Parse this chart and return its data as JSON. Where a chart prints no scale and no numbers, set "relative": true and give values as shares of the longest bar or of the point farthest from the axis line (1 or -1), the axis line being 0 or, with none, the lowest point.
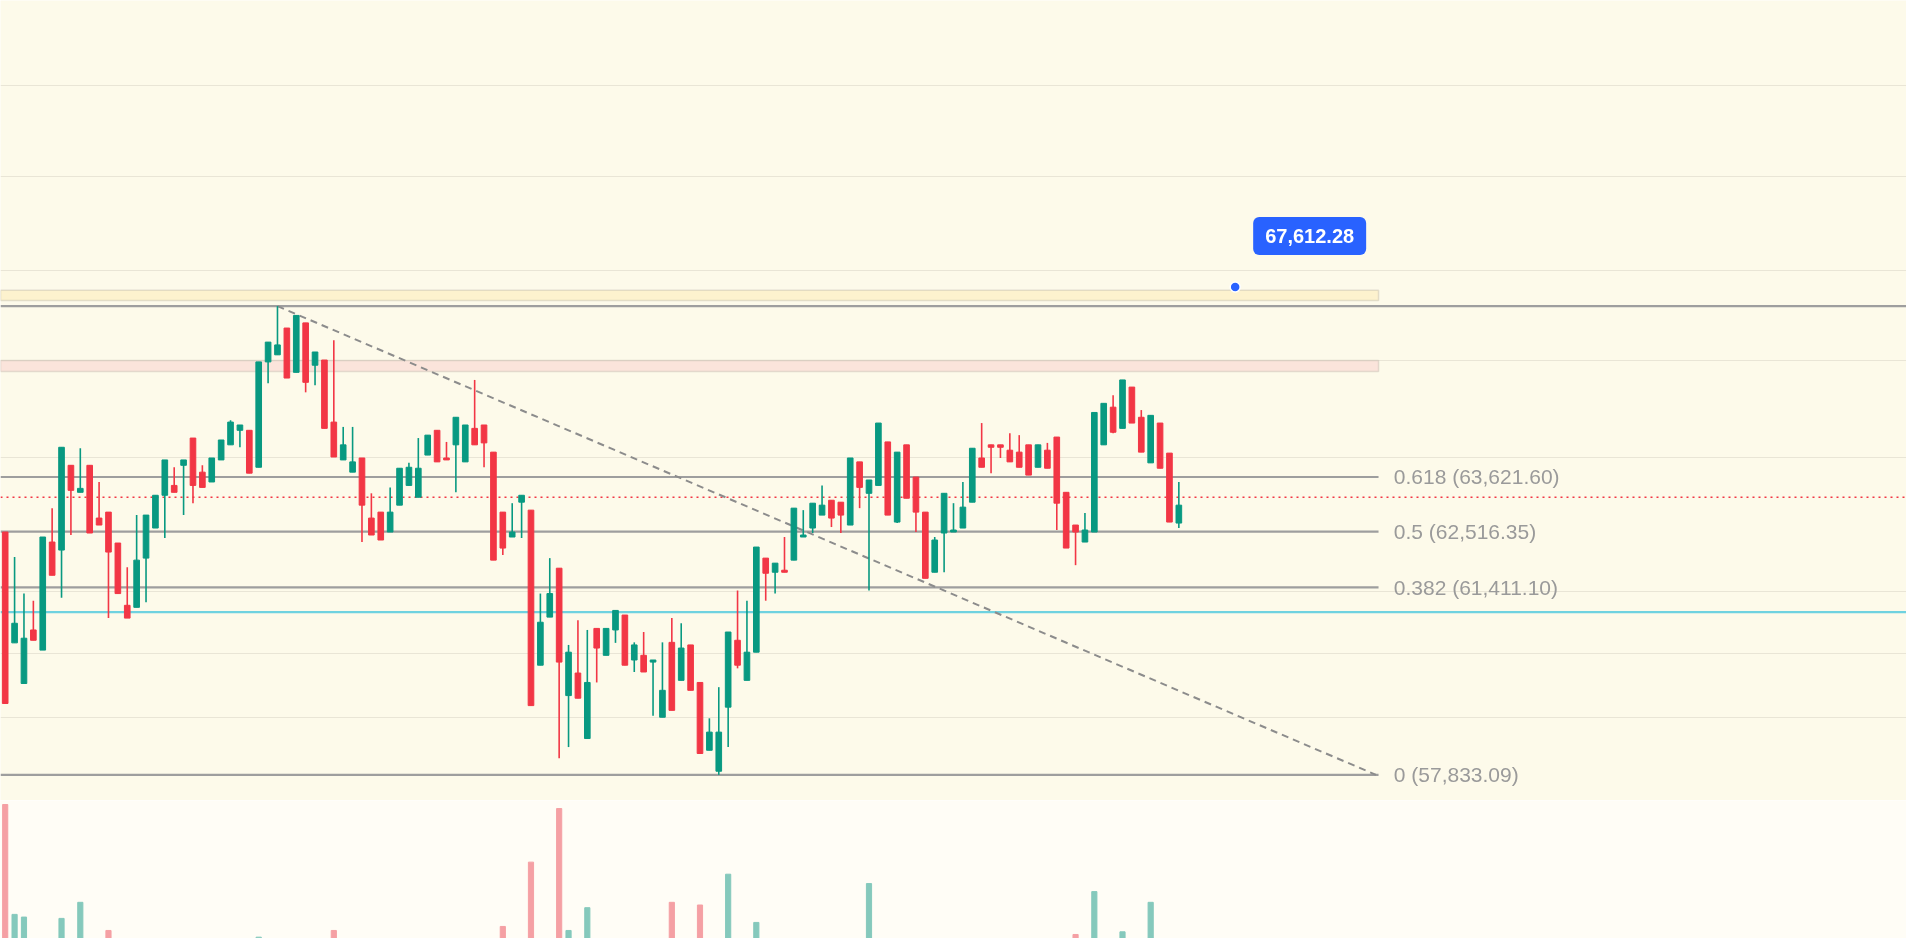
{
  "chart_data": [
    {
      "type": "candlestick",
      "log": true,
      "tick_labels": false,
      "grid": "y",
      "ylim": [
        57360,
        74110
      ],
      "yticks": [
        {
          "value": 58910,
          "label": null
        },
        {
          "value": 60130,
          "label": null
        },
        {
          "value": 61330,
          "label": null
        },
        {
          "value": 64030,
          "label": null
        },
        {
          "value": 66030,
          "label": null
        },
        {
          "value": 67970,
          "label": null
        },
        {
          "value": 70050,
          "label": null
        },
        {
          "value": 72120,
          "label": null
        }
      ],
      "categories": [
        null,
        null,
        null,
        null,
        null,
        null,
        null,
        null,
        null,
        null,
        null,
        null,
        null,
        null,
        null,
        null,
        null,
        null,
        null,
        null,
        null,
        null,
        null,
        null,
        null,
        null,
        null,
        null,
        null,
        null,
        null,
        null,
        null,
        null,
        null,
        null,
        null,
        null,
        null,
        null,
        null,
        null,
        null,
        null,
        null,
        null,
        null,
        null,
        null,
        null,
        null,
        null,
        null,
        null,
        null,
        null,
        null,
        null,
        null,
        null,
        null,
        null,
        null,
        null,
        null,
        null,
        null,
        null,
        null,
        null,
        null,
        null,
        null,
        null,
        null,
        null,
        null,
        null,
        null,
        null,
        null,
        null,
        null,
        null,
        null,
        null,
        null,
        null,
        null,
        null,
        null,
        null,
        null,
        null,
        null,
        null,
        null,
        null,
        null,
        null,
        null,
        null,
        null,
        null,
        null,
        null,
        null,
        null,
        null,
        null,
        null,
        null,
        null,
        null,
        null,
        null,
        null,
        null,
        null,
        null,
        null,
        null,
        null,
        null,
        null,
        null,
        null,
        null,
        null,
        null,
        null,
        null,
        null,
        null,
        null,
        null,
        null,
        null,
        null,
        null,
        null,
        null,
        null,
        null,
        null,
        null,
        null,
        null,
        null,
        null,
        null,
        null,
        null,
        null,
        null,
        null,
        null,
        null,
        null,
        null,
        null,
        null,
        null,
        null,
        null,
        null,
        null,
        null,
        null,
        null,
        null,
        null,
        null,
        null,
        null,
        null,
        null,
        null,
        null,
        null,
        null,
        null,
        null,
        null,
        null,
        null,
        null,
        null,
        null,
        null,
        null,
        null,
        null,
        null,
        null,
        null,
        null,
        null,
        null,
        null,
        null,
        null,
        null
      ],
      "ohlc": [
        [
          62510,
          62510,
          59170,
          59170
        ],
        [
          60330,
          62010,
          60330,
          60710
        ],
        [
          59550,
          61290,
          59550,
          60420
        ],
        [
          60580,
          61150,
          60380,
          60380
        ],
        [
          60190,
          62410,
          60190,
          62410
        ],
        [
          62310,
          62990,
          61650,
          61650
        ],
        [
          62150,
          64230,
          61210,
          64230
        ],
        [
          63860,
          63860,
          62450,
          63350
        ],
        [
          63310,
          64210,
          63310,
          63390
        ],
        [
          63860,
          63860,
          62490,
          62490
        ],
        [
          62790,
          63520,
          62650,
          62650
        ],
        [
          62910,
          62910,
          60810,
          62110
        ],
        [
          62290,
          62290,
          61290,
          61290
        ],
        [
          61060,
          61810,
          60810,
          60810
        ],
        [
          61020,
          62850,
          61020,
          61950
        ],
        [
          61990,
          62850,
          61120,
          62850
        ],
        [
          62590,
          63250,
          62590,
          63250
        ],
        [
          63250,
          63970,
          62390,
          63970
        ],
        [
          63450,
          63820,
          63310,
          63310
        ],
        [
          63860,
          63970,
          62850,
          63970
        ],
        [
          64420,
          64420,
          63090,
          63450
        ],
        [
          63720,
          63860,
          63410,
          63410
        ],
        [
          63520,
          64010,
          63520,
          64010
        ],
        [
          63970,
          64380,
          63970,
          64380
        ],
        [
          64280,
          64790,
          64280,
          64750
        ],
        [
          64580,
          64690,
          64230,
          64690
        ],
        [
          64580,
          64580,
          63700,
          63700
        ],
        [
          63820,
          66010,
          63820,
          66010
        ],
        [
          66010,
          66430,
          65560,
          66430
        ],
        [
          66160,
          67200,
          66160,
          66370
        ],
        [
          66730,
          66730,
          65670,
          65670
        ],
        [
          65790,
          67000,
          65790,
          67000
        ],
        [
          66840,
          66840,
          65370,
          65580
        ],
        [
          65940,
          66220,
          65520,
          66220
        ],
        [
          66050,
          66050,
          64620,
          64620
        ],
        [
          64750,
          66470,
          64030,
          64030
        ],
        [
          63970,
          64650,
          63970,
          64280
        ],
        [
          63720,
          64650,
          63720,
          63930
        ],
        [
          64010,
          64010,
          62310,
          63050
        ],
        [
          62790,
          63290,
          62450,
          62450
        ],
        [
          62910,
          62910,
          62350,
          62350
        ],
        [
          62510,
          63410,
          62510,
          62910
        ],
        [
          63050,
          63800,
          63050,
          63800
        ],
        [
          63450,
          63910,
          63450,
          63820
        ],
        [
          63210,
          64420,
          63210,
          63800
        ],
        [
          64070,
          64480,
          64070,
          64480
        ],
        [
          64580,
          64580,
          63930,
          63930
        ],
        [
          64010,
          64340,
          63970,
          63970
        ],
        [
          64280,
          64850,
          63310,
          64850
        ],
        [
          63930,
          64690,
          63930,
          64690
        ],
        [
          64620,
          65630,
          64280,
          64280
        ],
        [
          64690,
          64690,
          63820,
          64320
        ],
        [
          64130,
          64130,
          61950,
          61950
        ],
        [
          62910,
          62910,
          62050,
          62190
        ],
        [
          62410,
          63090,
          62410,
          62510
        ],
        [
          63110,
          63250,
          62390,
          63250
        ],
        [
          62950,
          62950,
          59130,
          59130
        ],
        [
          59900,
          61290,
          59900,
          60730
        ],
        [
          60830,
          61990,
          60830,
          61290
        ],
        [
          61790,
          61790,
          58140,
          59960
        ],
        [
          59320,
          60290,
          58350,
          60150
        ],
        [
          59750,
          60770,
          59270,
          59270
        ],
        [
          58510,
          60580,
          58510,
          59570
        ],
        [
          60610,
          60610,
          59570,
          60230
        ],
        [
          60090,
          60610,
          60090,
          60610
        ],
        [
          60580,
          60960,
          60330,
          60960
        ],
        [
          60870,
          60870,
          59900,
          59900
        ],
        [
          60000,
          60340,
          59770,
          60290
        ],
        [
          60090,
          60540,
          59770,
          59770
        ],
        [
          59960,
          60000,
          58940,
          60000
        ],
        [
          58910,
          60340,
          58910,
          59420
        ],
        [
          60340,
          60810,
          59040,
          59040
        ],
        [
          59610,
          60710,
          59610,
          60230
        ],
        [
          60290,
          60290,
          59420,
          59420
        ],
        [
          59570,
          59570,
          58230,
          58230
        ],
        [
          58290,
          58890,
          58290,
          58630
        ],
        [
          57900,
          59480,
          57833.09,
          58630
        ],
        [
          59100,
          60540,
          58350,
          60540
        ],
        [
          60380,
          61350,
          59840,
          59900
        ],
        [
          59610,
          61150,
          59610,
          60150
        ],
        [
          60150,
          62210,
          60150,
          62210
        ],
        [
          61990,
          61990,
          61150,
          61690
        ],
        [
          61710,
          61890,
          61290,
          61890
        ],
        [
          61750,
          62410,
          61710,
          61710
        ],
        [
          61950,
          62990,
          61950,
          62990
        ],
        [
          62410,
          62950,
          62410,
          62450
        ],
        [
          62590,
          63090,
          62490,
          63090
        ],
        [
          62850,
          63450,
          62850,
          63050
        ],
        [
          63150,
          63150,
          62610,
          62790
        ],
        [
          63110,
          63110,
          62490,
          62850
        ],
        [
          62650,
          64010,
          62650,
          64010
        ],
        [
          63930,
          63930,
          62990,
          63410
        ],
        [
          63290,
          63560,
          61350,
          63560
        ],
        [
          63450,
          64730,
          63450,
          64730
        ],
        [
          64340,
          64340,
          62850,
          62850
        ],
        [
          62710,
          64130,
          62690,
          64130
        ],
        [
          64280,
          64280,
          63190,
          63190
        ],
        [
          63620,
          63620,
          62510,
          62910
        ],
        [
          62910,
          62910,
          61590,
          61590
        ],
        [
          61710,
          62410,
          61710,
          62350
        ],
        [
          62490,
          63290,
          61710,
          63290
        ],
        [
          62510,
          63090,
          62510,
          62550
        ],
        [
          62590,
          63520,
          62590,
          63010
        ],
        [
          63110,
          64210,
          63110,
          64210
        ],
        [
          64010,
          64730,
          63820,
          63820
        ],
        [
          64280,
          64280,
          63700,
          64230
        ],
        [
          64280,
          64280,
          64010,
          64230
        ],
        [
          64170,
          64520,
          63930,
          63930
        ],
        [
          64130,
          64480,
          63820,
          63820
        ],
        [
          64280,
          64280,
          63660,
          63660
        ],
        [
          63820,
          64280,
          63820,
          64280
        ],
        [
          64170,
          64320,
          63800,
          63800
        ],
        [
          64440,
          64440,
          62550,
          63090
        ],
        [
          63310,
          63310,
          62190,
          62190
        ],
        [
          62650,
          62650,
          61850,
          62510
        ],
        [
          62310,
          62890,
          62310,
          62550
        ],
        [
          62510,
          64950,
          62510,
          64950
        ],
        [
          64280,
          65140,
          64280,
          65140
        ],
        [
          65060,
          65310,
          64520,
          64540
        ],
        [
          64620,
          65630,
          64620,
          65630
        ],
        [
          65480,
          65480,
          64730,
          64730
        ],
        [
          64850,
          65000,
          64130,
          64130
        ],
        [
          63910,
          64890,
          63910,
          64890
        ],
        [
          64730,
          64730,
          63800,
          63800
        ],
        [
          64110,
          64110,
          62710,
          62710
        ],
        [
          62690,
          63520,
          62590,
          63050
        ],
        null,
        null,
        null,
        null,
        null,
        null,
        null,
        null,
        null,
        null,
        null,
        null,
        null,
        null,
        null,
        null,
        null,
        null,
        null,
        null,
        null,
        null,
        null,
        null,
        null,
        null,
        null,
        null,
        null,
        null,
        null,
        null,
        null,
        null,
        null,
        null,
        null,
        null,
        null,
        null,
        null,
        null,
        null,
        null,
        null,
        null,
        null,
        null,
        null,
        null,
        null,
        null,
        null,
        null,
        null,
        null,
        null,
        null,
        null,
        null,
        null,
        null,
        null,
        null,
        null,
        null,
        null,
        null,
        null,
        null,
        null,
        null,
        null,
        null,
        null,
        null,
        null
      ],
      "colors": [
        "#f23645",
        "#089981",
        "#089981",
        "#f23645",
        "#089981",
        "#f23645",
        "#089981",
        "#f23645",
        "#089981",
        "#f23645",
        "#f23645",
        "#f23645",
        "#f23645",
        "#f23645",
        "#089981",
        "#089981",
        "#089981",
        "#089981",
        "#f23645",
        "#089981",
        "#f23645",
        "#f23645",
        "#089981",
        "#089981",
        "#089981",
        "#089981",
        "#f23645",
        "#089981",
        "#089981",
        "#089981",
        "#f23645",
        "#089981",
        "#f23645",
        "#089981",
        "#f23645",
        "#f23645",
        "#089981",
        "#089981",
        "#f23645",
        "#f23645",
        "#f23645",
        "#089981",
        "#089981",
        "#089981",
        "#089981",
        "#089981",
        "#f23645",
        "#f23645",
        "#089981",
        "#089981",
        "#f23645",
        "#f23645",
        "#f23645",
        "#f23645",
        "#089981",
        "#089981",
        "#f23645",
        "#089981",
        "#089981",
        "#f23645",
        "#089981",
        "#f23645",
        "#089981",
        "#f23645",
        "#089981",
        "#089981",
        "#f23645",
        "#089981",
        "#f23645",
        "#089981",
        "#089981",
        "#f23645",
        "#089981",
        "#f23645",
        "#f23645",
        "#089981",
        "#089981",
        "#089981",
        "#f23645",
        "#089981",
        "#089981",
        "#f23645",
        "#089981",
        "#f23645",
        "#089981",
        "#089981",
        "#089981",
        "#089981",
        "#f23645",
        "#f23645",
        "#089981",
        "#f23645",
        "#089981",
        "#089981",
        "#f23645",
        "#089981",
        "#f23645",
        "#f23645",
        "#f23645",
        "#089981",
        "#089981",
        "#089981",
        "#089981",
        "#089981",
        "#f23645",
        "#f23645",
        "#f23645",
        "#f23645",
        "#f23645",
        "#f23645",
        "#089981",
        "#f23645",
        "#f23645",
        "#f23645",
        "#f23645",
        "#089981",
        "#089981",
        "#089981",
        "#f23645",
        "#089981",
        "#f23645",
        "#f23645",
        "#089981",
        "#f23645",
        "#f23645",
        "#089981",
        null,
        null,
        null,
        null,
        null,
        null,
        null,
        null,
        null,
        null,
        null,
        null,
        null,
        null,
        null,
        null,
        null,
        null,
        null,
        null,
        null,
        null,
        null,
        null,
        null,
        null,
        null,
        null,
        null,
        null,
        null,
        null,
        null,
        null,
        null,
        null,
        null,
        null,
        null,
        null,
        null,
        null,
        null,
        null,
        null,
        null,
        null,
        null,
        null,
        null,
        null,
        null,
        null,
        null,
        null,
        null,
        null,
        null,
        null,
        null,
        null,
        null,
        null,
        null,
        null,
        null,
        null,
        null,
        null,
        null,
        null,
        null,
        null,
        null,
        null,
        null,
        null
      ],
      "series": [
        {
          "type": "line",
          "color": "#8c8c8c",
          "line_style": "dashed",
          "values": [
            null,
            null,
            null,
            null,
            null,
            null,
            null,
            null,
            null,
            null,
            null,
            null,
            null,
            null,
            null,
            null,
            null,
            null,
            null,
            null,
            null,
            null,
            null,
            null,
            null,
            null,
            null,
            null,
            null,
            67199.61,
            null,
            null,
            null,
            null,
            null,
            null,
            null,
            null,
            null,
            null,
            null,
            null,
            null,
            null,
            null,
            null,
            null,
            null,
            null,
            null,
            null,
            null,
            null,
            null,
            null,
            null,
            null,
            null,
            null,
            null,
            null,
            null,
            null,
            null,
            null,
            null,
            null,
            null,
            null,
            null,
            null,
            null,
            null,
            null,
            null,
            null,
            null,
            null,
            null,
            null,
            null,
            null,
            null,
            null,
            null,
            null,
            null,
            null,
            null,
            null,
            null,
            null,
            null,
            null,
            null,
            null,
            null,
            null,
            null,
            null,
            null,
            null,
            null,
            null,
            null,
            null,
            null,
            null,
            null,
            null,
            null,
            null,
            null,
            null,
            null,
            null,
            null,
            null,
            null,
            null,
            null,
            null,
            null,
            null,
            null,
            null,
            null,
            null,
            null,
            null,
            null,
            null,
            null,
            null,
            null,
            null,
            null,
            null,
            null,
            null,
            null,
            null,
            null,
            null,
            null,
            null,
            57833.09,
            null,
            null,
            null,
            null,
            null,
            null,
            null,
            null,
            null,
            null,
            null,
            null,
            null,
            null,
            null,
            null,
            null,
            null,
            null,
            null,
            null,
            null,
            null,
            null,
            null,
            null,
            null,
            null,
            null,
            null,
            null,
            null,
            null,
            null,
            null,
            null,
            null,
            null,
            null,
            null,
            null,
            null,
            null,
            null,
            null,
            null,
            null,
            null,
            null,
            null,
            null,
            null,
            null,
            null,
            null,
            null
          ]
        },
        {
          "type": "scatter",
          "color": "#2962ff",
          "marker": "circle",
          "values": [
            null,
            null,
            null,
            null,
            null,
            null,
            null,
            null,
            null,
            null,
            null,
            null,
            null,
            null,
            null,
            null,
            null,
            null,
            null,
            null,
            null,
            null,
            null,
            null,
            null,
            null,
            null,
            null,
            null,
            null,
            null,
            null,
            null,
            null,
            null,
            null,
            null,
            null,
            null,
            null,
            null,
            null,
            null,
            null,
            null,
            null,
            null,
            null,
            null,
            null,
            null,
            null,
            null,
            null,
            null,
            null,
            null,
            null,
            null,
            null,
            null,
            null,
            null,
            null,
            null,
            null,
            null,
            null,
            null,
            null,
            null,
            null,
            null,
            null,
            null,
            null,
            null,
            null,
            null,
            null,
            null,
            null,
            null,
            null,
            null,
            null,
            null,
            null,
            null,
            null,
            null,
            null,
            null,
            null,
            null,
            null,
            null,
            null,
            null,
            null,
            null,
            null,
            null,
            null,
            null,
            null,
            null,
            null,
            null,
            null,
            null,
            null,
            null,
            null,
            null,
            null,
            null,
            null,
            null,
            null,
            null,
            null,
            null,
            null,
            null,
            null,
            null,
            null,
            null,
            null,
            null,
            67612.28,
            null,
            null,
            null,
            null,
            null,
            null,
            null,
            null,
            null,
            null,
            null,
            null,
            null,
            null,
            null,
            null,
            null,
            null,
            null,
            null,
            null,
            null,
            null,
            null,
            null,
            null,
            null,
            null,
            null,
            null,
            null,
            null,
            null,
            null,
            null,
            null,
            null,
            null,
            null,
            null,
            null,
            null,
            null,
            null,
            null,
            null,
            null,
            null,
            null,
            null,
            null,
            null,
            null,
            null,
            null,
            null,
            null,
            null,
            null,
            null,
            null,
            null,
            null,
            null,
            null,
            null,
            null,
            null,
            null,
            null,
            null
          ]
        }
      ],
      "ref_lines": [
        {
          "axis": "y",
          "value": 67199.61,
          "label": null,
          "color": "#9e9e9e"
        },
        {
          "axis": "y",
          "value": 63621.6,
          "label": "0.618 (63,621.60)",
          "color": "#9e9e9e"
        },
        {
          "axis": "y",
          "value": 62516.35,
          "label": "0.5 (62,516.35)",
          "color": "#9e9e9e"
        },
        {
          "axis": "y",
          "value": 61411.1,
          "label": "0.382 (61,411.10)",
          "color": "#9e9e9e"
        },
        {
          "axis": "y",
          "value": 57833.09,
          "label": "0 (57,833.09)",
          "color": "#9e9e9e"
        },
        {
          "axis": "y",
          "value": 60925,
          "label": null,
          "color": "#6fd2e0"
        },
        {
          "axis": "y",
          "value": 63210,
          "label": null,
          "color": "#f23645",
          "line_style": "dotted"
        }
      ],
      "bands": [
        {
          "axis": "y",
          "from": 67320,
          "to": 67540,
          "color": "#fcefc4"
        },
        {
          "axis": "y",
          "from": 65810,
          "to": 66040,
          "color": "#fadcd6"
        }
      ],
      "annotations": [
        {
          "text": "67,612.28",
          "y": 67612.28
        }
      ]
    },
    {
      "type": "bar",
      "relative": true,
      "tick_labels": false,
      "categories": [
        null,
        null,
        null,
        null,
        null,
        null,
        null,
        null,
        null,
        null,
        null,
        null,
        null,
        null,
        null,
        null,
        null,
        null,
        null,
        null,
        null,
        null,
        null,
        null,
        null,
        null,
        null,
        null,
        null,
        null,
        null,
        null,
        null,
        null,
        null,
        null,
        null,
        null,
        null,
        null,
        null,
        null,
        null,
        null,
        null,
        null,
        null,
        null,
        null,
        null,
        null,
        null,
        null,
        null,
        null,
        null,
        null,
        null,
        null,
        null,
        null,
        null,
        null,
        null,
        null,
        null,
        null,
        null,
        null,
        null,
        null,
        null,
        null,
        null,
        null,
        null,
        null,
        null,
        null,
        null,
        null,
        null,
        null,
        null,
        null,
        null,
        null,
        null,
        null,
        null,
        null,
        null,
        null,
        null,
        null,
        null,
        null,
        null,
        null,
        null,
        null,
        null,
        null,
        null,
        null,
        null,
        null,
        null,
        null,
        null,
        null,
        null,
        null,
        null,
        null,
        null,
        null,
        null,
        null,
        null,
        null,
        null,
        null,
        null,
        null,
        null,
        null,
        null,
        null,
        null,
        null,
        null,
        null,
        null,
        null,
        null,
        null,
        null,
        null,
        null,
        null,
        null,
        null,
        null,
        null,
        null,
        null,
        null,
        null,
        null,
        null,
        null,
        null,
        null,
        null,
        null,
        null,
        null,
        null,
        null,
        null,
        null,
        null,
        null,
        null,
        null,
        null,
        null,
        null,
        null,
        null,
        null,
        null,
        null,
        null,
        null,
        null,
        null,
        null,
        null,
        null,
        null,
        null,
        null,
        null,
        null,
        null,
        null,
        null,
        null,
        null,
        null,
        null,
        null,
        null,
        null,
        null,
        null,
        null,
        null,
        null,
        null,
        null
      ],
      "values": [
        1,
        0.18,
        0.16,
        null,
        null,
        null,
        0.15,
        null,
        0.27,
        null,
        null,
        0.06,
        null,
        null,
        null,
        null,
        null,
        null,
        null,
        null,
        null,
        null,
        null,
        null,
        null,
        null,
        null,
        0.01,
        null,
        null,
        null,
        null,
        null,
        null,
        null,
        0.06,
        null,
        null,
        null,
        null,
        null,
        null,
        null,
        null,
        null,
        null,
        null,
        null,
        null,
        null,
        null,
        null,
        null,
        0.09,
        null,
        null,
        0.57,
        null,
        null,
        0.97,
        0.06,
        null,
        0.23,
        null,
        null,
        null,
        null,
        null,
        null,
        null,
        null,
        0.27,
        null,
        null,
        0.25,
        null,
        null,
        0.48,
        null,
        null,
        0.12,
        null,
        null,
        null,
        null,
        null,
        null,
        null,
        null,
        null,
        null,
        null,
        0.41,
        null,
        null,
        null,
        null,
        null,
        null,
        null,
        null,
        null,
        null,
        null,
        null,
        null,
        null,
        null,
        null,
        null,
        null,
        null,
        null,
        null,
        0.03,
        null,
        0.35,
        null,
        null,
        0.05,
        null,
        null,
        0.27,
        null,
        null,
        null,
        null,
        null,
        null,
        null,
        null,
        null,
        null,
        null,
        null,
        null,
        null,
        null,
        null,
        null,
        null,
        null,
        null,
        null,
        null,
        null,
        null,
        null,
        null,
        null,
        null,
        null,
        null,
        null,
        null,
        null,
        null,
        null,
        null,
        null,
        null,
        null,
        null,
        null,
        null,
        null,
        null,
        null,
        null,
        null,
        null,
        null,
        null,
        null,
        null,
        null,
        null,
        null,
        null,
        null,
        null,
        null,
        null,
        null,
        null,
        null,
        null,
        null,
        null,
        null,
        null,
        null,
        null,
        null,
        null,
        null,
        null,
        null,
        null,
        null,
        null,
        null,
        null
      ],
      "colors": [
        "#f5a0a4",
        "#85c9bc",
        "#85c9bc",
        null,
        null,
        null,
        "#85c9bc",
        null,
        "#85c9bc",
        null,
        null,
        "#f5a0a4",
        null,
        null,
        null,
        null,
        null,
        null,
        null,
        null,
        null,
        null,
        null,
        null,
        null,
        null,
        null,
        "#85c9bc",
        null,
        null,
        null,
        null,
        null,
        null,
        null,
        "#f5a0a4",
        null,
        null,
        null,
        null,
        null,
        null,
        null,
        null,
        null,
        null,
        null,
        null,
        null,
        null,
        null,
        null,
        null,
        "#f5a0a4",
        null,
        null,
        "#f5a0a4",
        null,
        null,
        "#f5a0a4",
        "#85c9bc",
        null,
        "#85c9bc",
        null,
        null,
        null,
        null,
        null,
        null,
        null,
        null,
        "#f5a0a4",
        null,
        null,
        "#f5a0a4",
        null,
        null,
        "#85c9bc",
        null,
        null,
        "#85c9bc",
        null,
        null,
        null,
        null,
        null,
        null,
        null,
        null,
        null,
        null,
        null,
        "#85c9bc",
        null,
        null,
        null,
        null,
        null,
        null,
        null,
        null,
        null,
        null,
        null,
        null,
        null,
        null,
        null,
        null,
        null,
        null,
        null,
        null,
        null,
        "#f5a0a4",
        null,
        "#85c9bc",
        null,
        null,
        "#85c9bc",
        null,
        null,
        "#85c9bc",
        null,
        null,
        null,
        null,
        null,
        null,
        null,
        null,
        null,
        null,
        null,
        null,
        null,
        null,
        null,
        null,
        null,
        null,
        null,
        null,
        null,
        null,
        null,
        null,
        null,
        null,
        null,
        null,
        null,
        null,
        null,
        null,
        null,
        null,
        null,
        null,
        null,
        null,
        null,
        null,
        null,
        null,
        null,
        null,
        null,
        null,
        null,
        null,
        null,
        null,
        null,
        null,
        null,
        null,
        null,
        null,
        null,
        null,
        null,
        null,
        null,
        null,
        null,
        null,
        null,
        null,
        null,
        null,
        null,
        null,
        null,
        null,
        null,
        null,
        null,
        null,
        null,
        null,
        null,
        null
      ]
    }
  ]
}
